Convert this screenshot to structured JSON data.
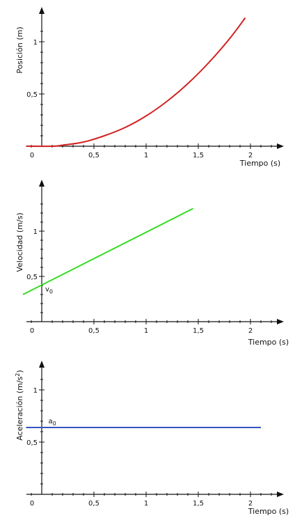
{
  "chart_data": [
    {
      "type": "line",
      "xlabel": "Tiempo (s)",
      "ylabel": "Posición (m)",
      "xlim": [
        -0.15,
        2.3
      ],
      "ylim": [
        -0.05,
        1.25
      ],
      "xticks": [
        0,
        0.5,
        1,
        1.5,
        2
      ],
      "yticks": [
        0.5,
        1
      ],
      "xtick_labels": [
        "0",
        "0,5",
        "1",
        "1,5",
        "2"
      ],
      "ytick_labels": [
        "0,5",
        "1"
      ],
      "minor_tick_step": 0.1,
      "annotation": "",
      "series": [
        {
          "color": "#d22020",
          "x": [
            -0.15,
            0.1,
            0.2,
            0.4,
            0.6,
            0.8,
            1.0,
            1.2,
            1.4,
            1.6,
            1.8,
            1.95
          ],
          "y": [
            0.0,
            0.0,
            0.01,
            0.04,
            0.1,
            0.18,
            0.29,
            0.43,
            0.6,
            0.8,
            1.03,
            1.23
          ]
        }
      ]
    },
    {
      "type": "line",
      "xlabel": "Tiempo (s)",
      "ylabel": "Velocidad (m/s)",
      "xlim": [
        -0.15,
        2.3
      ],
      "ylim": [
        -0.15,
        1.35
      ],
      "xticks": [
        0,
        0.5,
        1,
        1.5,
        2
      ],
      "yticks": [
        0.5,
        1
      ],
      "xtick_labels": [
        "0",
        "0,5",
        "1",
        "1,5",
        "2"
      ],
      "ytick_labels": [
        "0,5",
        "1"
      ],
      "minor_tick_step": 0.1,
      "annotation": "v0",
      "annotation_point": [
        0.02,
        0.41
      ],
      "series": [
        {
          "color": "#33dd22",
          "x": [
            -0.18,
            1.45
          ],
          "y": [
            0.3,
            1.25
          ]
        }
      ]
    },
    {
      "type": "line",
      "xlabel": "Tiempo (s)",
      "ylabel": "Aceleración (m/s2)",
      "xlim": [
        -0.15,
        2.3
      ],
      "ylim": [
        -0.05,
        1.2
      ],
      "xticks": [
        0,
        0.5,
        1,
        1.5,
        2
      ],
      "yticks": [
        0.5,
        1
      ],
      "xtick_labels": [
        "0",
        "0,5",
        "1",
        "1,5",
        "2"
      ],
      "ytick_labels": [
        "0,5",
        "1"
      ],
      "minor_tick_step": 0.1,
      "annotation": "a0",
      "annotation_point": [
        0.05,
        0.64
      ],
      "series": [
        {
          "color": "#3355bb",
          "x": [
            -0.15,
            2.1
          ],
          "y": [
            0.64,
            0.64
          ]
        }
      ]
    }
  ]
}
